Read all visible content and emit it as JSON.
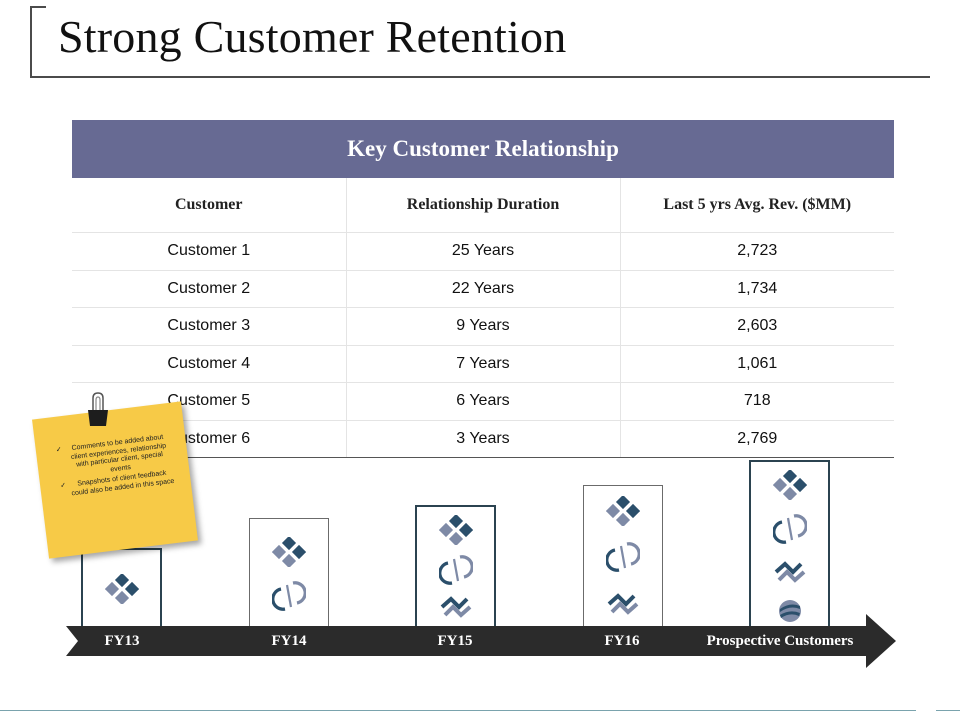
{
  "title": "Strong Customer Retention",
  "table": {
    "heading": "Key Customer Relationship",
    "columns": [
      "Customer",
      "Relationship Duration",
      "Last 5 yrs Avg. Rev. ($MM)"
    ],
    "rows": [
      [
        "Customer 1",
        "25 Years",
        "2,723"
      ],
      [
        "Customer 2",
        "22 Years",
        "1,734"
      ],
      [
        "Customer 3",
        "9 Years",
        "2,603"
      ],
      [
        "Customer 4",
        "7 Years",
        "1,061"
      ],
      [
        "Customer 5",
        "6 Years",
        "718"
      ],
      [
        "Customer 6",
        "3 Years",
        "2,769"
      ]
    ]
  },
  "note": {
    "items": [
      "Comments to be added about client experiences, relationship with particular client, special events",
      "Snapshots of client feedback could also be added in this space"
    ]
  },
  "timeline": {
    "labels": [
      "FY13",
      "FY14",
      "FY15",
      "FY16",
      "Prospective Customers"
    ]
  },
  "colors": {
    "header_bg": "#676a93",
    "icon": "#2b4f6b",
    "arrow": "#2b2b2b",
    "note": "#f7ca47"
  },
  "icons": [
    "diamond-cluster-icon",
    "cycle-arrows-icon",
    "twisted-arrows-icon",
    "globe-icon"
  ]
}
